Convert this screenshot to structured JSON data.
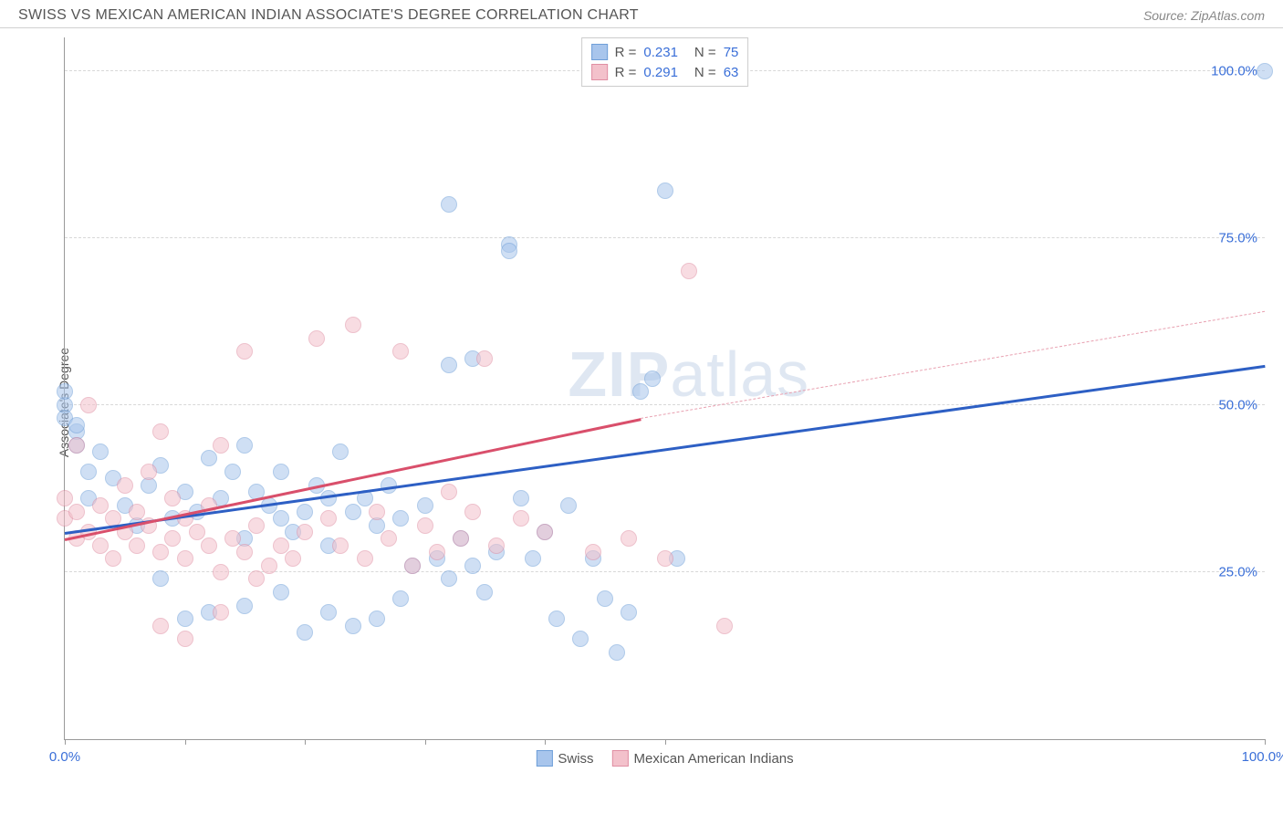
{
  "header": {
    "title": "SWISS VS MEXICAN AMERICAN INDIAN ASSOCIATE'S DEGREE CORRELATION CHART",
    "source": "Source: ZipAtlas.com"
  },
  "ylabel": "Associate's Degree",
  "watermark": {
    "bold": "ZIP",
    "rest": "atlas"
  },
  "chart": {
    "type": "scatter",
    "xlim": [
      0,
      100
    ],
    "ylim": [
      0,
      105
    ],
    "background_color": "#ffffff",
    "grid_color": "#d8d8d8",
    "axis_color": "#999999",
    "tick_label_color": "#3a6fd8",
    "tick_fontsize": 15,
    "y_gridlines": [
      25,
      50,
      75,
      100
    ],
    "y_tick_labels": [
      "25.0%",
      "50.0%",
      "75.0%",
      "100.0%"
    ],
    "x_ticks": [
      0,
      10,
      20,
      30,
      40,
      50,
      100
    ],
    "x_tick_labels": {
      "0": "0.0%",
      "100": "100.0%"
    },
    "point_radius": 9,
    "point_opacity": 0.55,
    "series": [
      {
        "name": "Swiss",
        "fill_color": "#a8c5ec",
        "stroke_color": "#6f9fd8",
        "trend": {
          "x1": 0,
          "y1": 31,
          "x2": 100,
          "y2": 56,
          "color": "#2d5fc4",
          "width": 2.5,
          "dashed": false
        },
        "points": [
          [
            0,
            50
          ],
          [
            0,
            48
          ],
          [
            0,
            52
          ],
          [
            1,
            46
          ],
          [
            1,
            44
          ],
          [
            2,
            40
          ],
          [
            2,
            36
          ],
          [
            1,
            47
          ],
          [
            3,
            43
          ],
          [
            4,
            39
          ],
          [
            5,
            35
          ],
          [
            6,
            32
          ],
          [
            7,
            38
          ],
          [
            8,
            41
          ],
          [
            9,
            33
          ],
          [
            10,
            37
          ],
          [
            11,
            34
          ],
          [
            12,
            42
          ],
          [
            13,
            36
          ],
          [
            14,
            40
          ],
          [
            15,
            44
          ],
          [
            15,
            30
          ],
          [
            16,
            37
          ],
          [
            17,
            35
          ],
          [
            18,
            40
          ],
          [
            18,
            33
          ],
          [
            19,
            31
          ],
          [
            20,
            34
          ],
          [
            21,
            38
          ],
          [
            22,
            36
          ],
          [
            22,
            29
          ],
          [
            23,
            43
          ],
          [
            24,
            34
          ],
          [
            25,
            36
          ],
          [
            26,
            32
          ],
          [
            27,
            38
          ],
          [
            28,
            33
          ],
          [
            29,
            26
          ],
          [
            30,
            35
          ],
          [
            31,
            27
          ],
          [
            32,
            80
          ],
          [
            32,
            24
          ],
          [
            33,
            30
          ],
          [
            34,
            26
          ],
          [
            35,
            22
          ],
          [
            36,
            28
          ],
          [
            37,
            74
          ],
          [
            37,
            73
          ],
          [
            38,
            36
          ],
          [
            39,
            27
          ],
          [
            40,
            31
          ],
          [
            41,
            18
          ],
          [
            42,
            35
          ],
          [
            43,
            15
          ],
          [
            44,
            27
          ],
          [
            45,
            21
          ],
          [
            46,
            13
          ],
          [
            47,
            19
          ],
          [
            48,
            52
          ],
          [
            49,
            54
          ],
          [
            50,
            82
          ],
          [
            51,
            27
          ],
          [
            32,
            56
          ],
          [
            34,
            57
          ],
          [
            28,
            21
          ],
          [
            26,
            18
          ],
          [
            24,
            17
          ],
          [
            22,
            19
          ],
          [
            20,
            16
          ],
          [
            18,
            22
          ],
          [
            15,
            20
          ],
          [
            12,
            19
          ],
          [
            10,
            18
          ],
          [
            8,
            24
          ],
          [
            100,
            100
          ]
        ]
      },
      {
        "name": "Mexican American Indians",
        "fill_color": "#f3c1cb",
        "stroke_color": "#e08fa3",
        "trend": {
          "x1": 0,
          "y1": 30,
          "x2": 48,
          "y2": 48,
          "color": "#d94f6b",
          "width": 2.5,
          "dashed": false
        },
        "trend_ext": {
          "x1": 48,
          "y1": 48,
          "x2": 100,
          "y2": 64,
          "color": "#e8a0b0",
          "width": 1.5,
          "dashed": true
        },
        "points": [
          [
            0,
            33
          ],
          [
            0,
            36
          ],
          [
            1,
            30
          ],
          [
            1,
            34
          ],
          [
            1,
            44
          ],
          [
            2,
            31
          ],
          [
            2,
            50
          ],
          [
            3,
            29
          ],
          [
            3,
            35
          ],
          [
            4,
            27
          ],
          [
            4,
            33
          ],
          [
            5,
            31
          ],
          [
            5,
            38
          ],
          [
            6,
            29
          ],
          [
            6,
            34
          ],
          [
            7,
            32
          ],
          [
            7,
            40
          ],
          [
            8,
            28
          ],
          [
            8,
            46
          ],
          [
            9,
            30
          ],
          [
            9,
            36
          ],
          [
            10,
            27
          ],
          [
            10,
            33
          ],
          [
            11,
            31
          ],
          [
            12,
            29
          ],
          [
            12,
            35
          ],
          [
            13,
            25
          ],
          [
            13,
            44
          ],
          [
            14,
            30
          ],
          [
            15,
            28
          ],
          [
            15,
            58
          ],
          [
            16,
            32
          ],
          [
            16,
            24
          ],
          [
            17,
            26
          ],
          [
            18,
            29
          ],
          [
            19,
            27
          ],
          [
            20,
            31
          ],
          [
            21,
            60
          ],
          [
            22,
            33
          ],
          [
            23,
            29
          ],
          [
            24,
            62
          ],
          [
            25,
            27
          ],
          [
            26,
            34
          ],
          [
            27,
            30
          ],
          [
            28,
            58
          ],
          [
            29,
            26
          ],
          [
            30,
            32
          ],
          [
            31,
            28
          ],
          [
            32,
            37
          ],
          [
            33,
            30
          ],
          [
            34,
            34
          ],
          [
            35,
            57
          ],
          [
            36,
            29
          ],
          [
            38,
            33
          ],
          [
            40,
            31
          ],
          [
            44,
            28
          ],
          [
            47,
            30
          ],
          [
            50,
            27
          ],
          [
            52,
            70
          ],
          [
            55,
            17
          ],
          [
            8,
            17
          ],
          [
            10,
            15
          ],
          [
            13,
            19
          ]
        ]
      }
    ]
  },
  "legend_top": {
    "rows": [
      {
        "swatch_fill": "#a8c5ec",
        "swatch_stroke": "#6f9fd8",
        "r_label": "R =",
        "r_val": "0.231",
        "n_label": "N =",
        "n_val": "75"
      },
      {
        "swatch_fill": "#f3c1cb",
        "swatch_stroke": "#e08fa3",
        "r_label": "R =",
        "r_val": "0.291",
        "n_label": "N =",
        "n_val": "63"
      }
    ]
  },
  "legend_bottom": {
    "items": [
      {
        "swatch_fill": "#a8c5ec",
        "swatch_stroke": "#6f9fd8",
        "label": "Swiss"
      },
      {
        "swatch_fill": "#f3c1cb",
        "swatch_stroke": "#e08fa3",
        "label": "Mexican American Indians"
      }
    ]
  }
}
